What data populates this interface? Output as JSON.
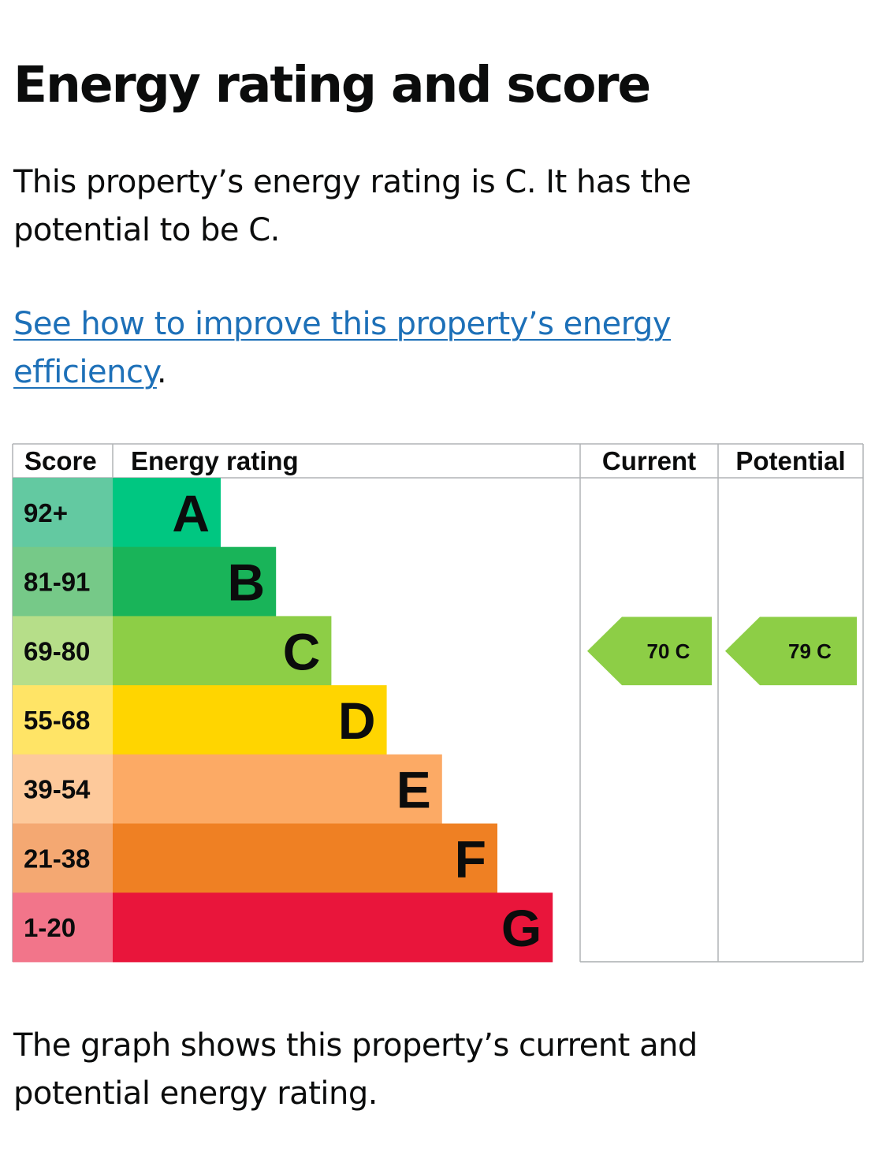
{
  "heading": "Energy rating and score",
  "summary": "This property’s energy rating is C. It has the potential to be C.",
  "link": {
    "text": "See how to improve this property’s energy efficiency",
    "suffix": "."
  },
  "footer_text": "The graph shows this property’s current and potential energy rating.",
  "chart_data": {
    "type": "bar",
    "headers": {
      "score": "Score",
      "rating": "Energy rating",
      "current": "Current",
      "potential": "Potential"
    },
    "bands": [
      {
        "letter": "A",
        "score": "92+",
        "color": "#00c781",
        "score_bg": "#63c9a1",
        "min": 92,
        "max": 100
      },
      {
        "letter": "B",
        "score": "81-91",
        "color": "#19b459",
        "score_bg": "#76c988",
        "min": 81,
        "max": 91
      },
      {
        "letter": "C",
        "score": "69-80",
        "color": "#8dce46",
        "score_bg": "#b6de89",
        "min": 69,
        "max": 80
      },
      {
        "letter": "D",
        "score": "55-68",
        "color": "#ffd500",
        "score_bg": "#ffe466",
        "min": 55,
        "max": 68
      },
      {
        "letter": "E",
        "score": "39-54",
        "color": "#fcaa65",
        "score_bg": "#fdc99b",
        "min": 39,
        "max": 54
      },
      {
        "letter": "F",
        "score": "21-38",
        "color": "#ef8023",
        "score_bg": "#f4a872",
        "min": 21,
        "max": 38
      },
      {
        "letter": "G",
        "score": "1-20",
        "color": "#e9153b",
        "score_bg": "#f2758a",
        "min": 1,
        "max": 20
      }
    ],
    "current": {
      "score": 70,
      "rating": "C",
      "label": "70  C"
    },
    "potential": {
      "score": 79,
      "rating": "C",
      "label": "79  C"
    }
  }
}
